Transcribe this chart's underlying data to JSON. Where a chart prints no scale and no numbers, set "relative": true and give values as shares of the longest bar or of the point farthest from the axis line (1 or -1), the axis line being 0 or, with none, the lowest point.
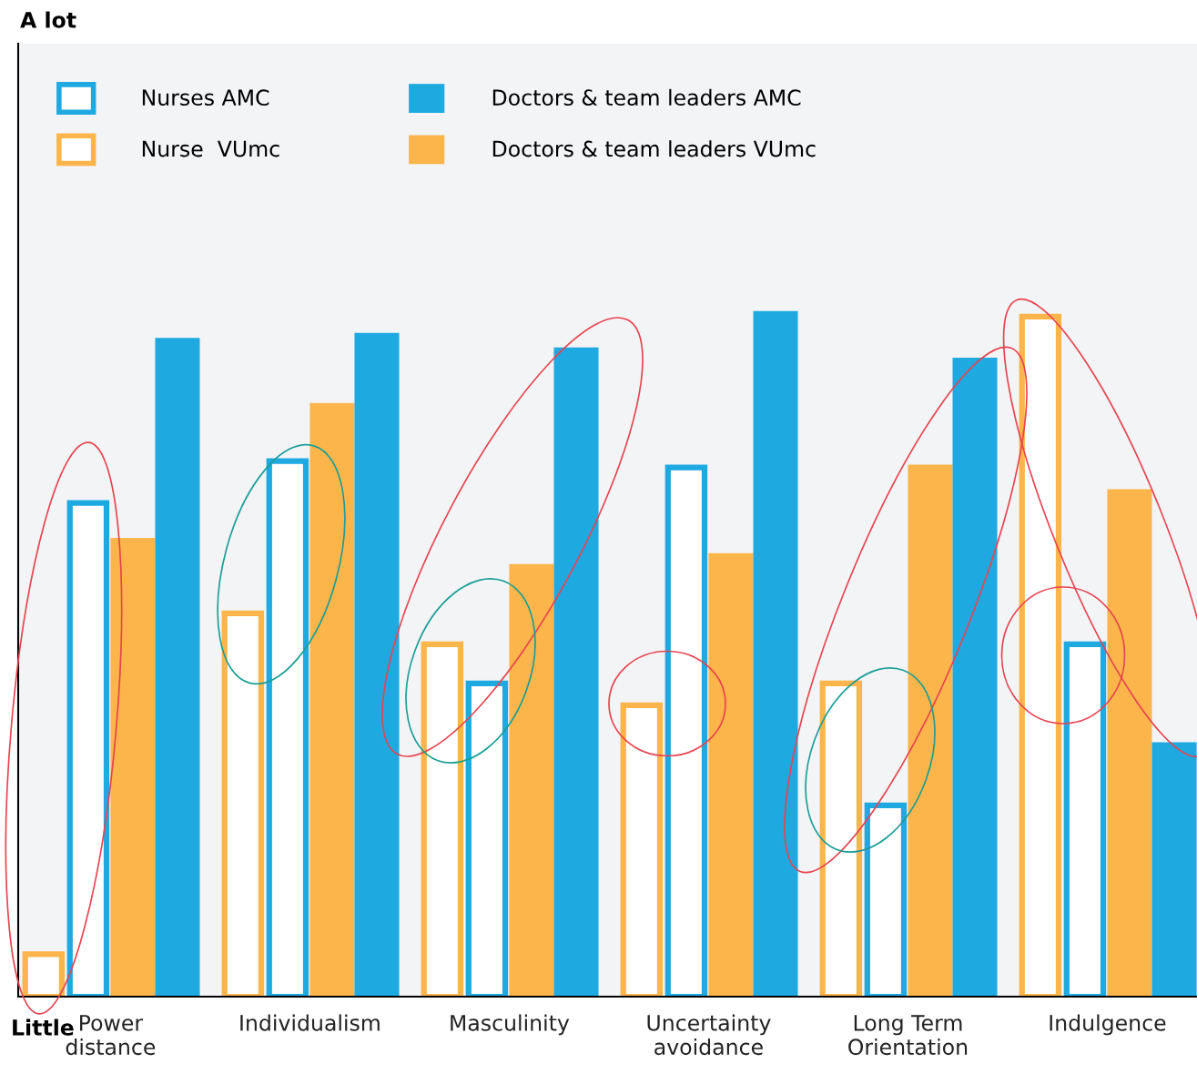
{
  "chart_data": {
    "type": "bar",
    "relative": true,
    "categories": [
      "Power\ndistance",
      "Individualism",
      "Masculinity",
      "Uncertainty\navoidance",
      "Long Term\nOrientation",
      "Indulgence"
    ],
    "series": [
      {
        "name": "Nurse  VUmc",
        "color": "#fbb54a",
        "values": [
          0.062,
          0.559,
          0.514,
          0.425,
          0.457,
          0.992
        ]
      },
      {
        "name": "Nurses AMC",
        "color": "#1fa9e1",
        "values": [
          0.72,
          0.781,
          0.457,
          0.772,
          0.279,
          0.514
        ]
      },
      {
        "name": "Doctors & team leaders VUmc",
        "color": "#fbb54a",
        "values": [
          0.669,
          0.866,
          0.631,
          0.647,
          0.776,
          0.74
        ]
      },
      {
        "name": "Doctors & team leaders AMC",
        "color": "#1fa9e1",
        "values": [
          0.961,
          0.968,
          0.947,
          1.0,
          0.932,
          0.371
        ]
      }
    ],
    "annotations": [
      "A lot",
      "Little"
    ],
    "legend": "top left",
    "grid": false
  }
}
